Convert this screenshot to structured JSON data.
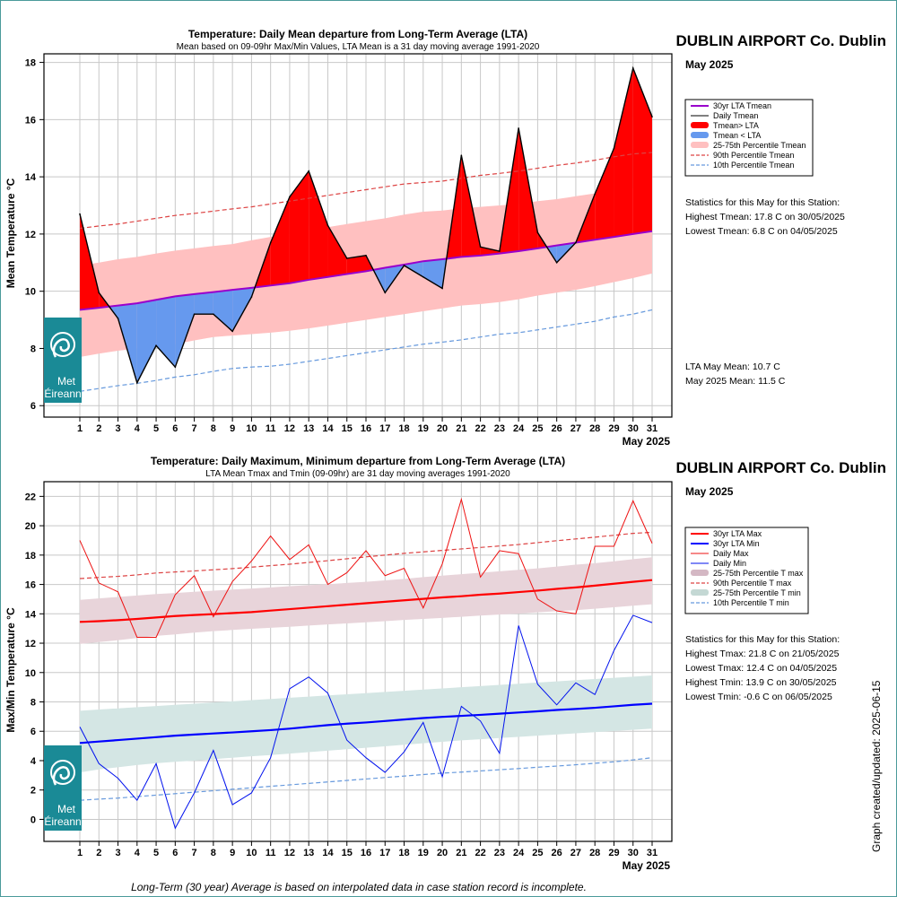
{
  "footer": {
    "note": "Long-Term (30 year) Average is based on interpolated data in case station record is incomplete.",
    "updated": "Graph created/updated:  2025-06-15"
  },
  "logo": {
    "line1": "Met",
    "line2": "Éireann"
  },
  "colors": {
    "lta_mean": "#9900cc",
    "above": "#ff0000",
    "below": "#6699ee",
    "band_mean": "#ffc0c0",
    "p90": "#dd4444",
    "p10": "#6699dd",
    "band_max": "#e8d4da",
    "band_min": "#d4e6e4",
    "max_line": "#ee1111",
    "min_line": "#0011ee",
    "lta_max": "#ff0000",
    "lta_min": "#0000ff",
    "logo_bg": "#1a8a96"
  },
  "chart_data": [
    {
      "type": "area",
      "title": "Temperature: Daily Mean departure from Long-Term Average (LTA)",
      "subtitle": "Mean based on 09-09hr Max/Min Values, LTA Mean is a 31 day moving average 1991-2020",
      "station": "DUBLIN AIRPORT Co. Dublin",
      "month": "May 2025",
      "ylabel": "Mean Temperature °C",
      "xlabel": "May 2025",
      "ylim": [
        5.6,
        18.3
      ],
      "yticks": [
        6,
        8,
        10,
        12,
        14,
        16,
        18
      ],
      "x": [
        1,
        2,
        3,
        4,
        5,
        6,
        7,
        8,
        9,
        10,
        11,
        12,
        13,
        14,
        15,
        16,
        17,
        18,
        19,
        20,
        21,
        22,
        23,
        24,
        25,
        26,
        27,
        28,
        29,
        30,
        31
      ],
      "series": [
        {
          "name": "30yr LTA Tmean",
          "values": [
            9.35,
            9.42,
            9.5,
            9.58,
            9.7,
            9.82,
            9.9,
            9.97,
            10.05,
            10.12,
            10.2,
            10.28,
            10.4,
            10.5,
            10.6,
            10.7,
            10.82,
            10.93,
            11.05,
            11.12,
            11.2,
            11.25,
            11.32,
            11.4,
            11.5,
            11.6,
            11.7,
            11.8,
            11.9,
            12.0,
            12.1
          ]
        },
        {
          "name": "Daily Tmean",
          "values": [
            12.7,
            9.95,
            9.05,
            6.8,
            8.1,
            7.35,
            9.2,
            9.2,
            8.6,
            9.8,
            11.7,
            13.3,
            14.2,
            12.3,
            11.15,
            11.25,
            9.95,
            10.9,
            10.5,
            10.1,
            14.75,
            11.55,
            11.4,
            15.7,
            12.05,
            11.0,
            11.7,
            13.4,
            15.0,
            17.8,
            16.1
          ]
        },
        {
          "name": "25-75th Percentile Tmean",
          "lower": [
            7.7,
            7.82,
            7.92,
            8.0,
            8.1,
            8.15,
            8.28,
            8.4,
            8.45,
            8.5,
            8.55,
            8.62,
            8.7,
            8.8,
            8.9,
            9.0,
            9.1,
            9.2,
            9.3,
            9.4,
            9.5,
            9.55,
            9.62,
            9.72,
            9.85,
            9.95,
            10.05,
            10.18,
            10.32,
            10.46,
            10.62
          ],
          "upper": [
            10.9,
            11.0,
            11.12,
            11.2,
            11.32,
            11.42,
            11.5,
            11.58,
            11.65,
            11.78,
            11.9,
            12.0,
            12.12,
            12.24,
            12.35,
            12.45,
            12.55,
            12.68,
            12.78,
            12.82,
            12.9,
            12.95,
            13.0,
            13.05,
            13.15,
            13.22,
            13.32,
            13.42,
            13.5,
            13.6,
            13.66
          ]
        },
        {
          "name": "90th Percentile Tmean",
          "values": [
            12.2,
            12.28,
            12.35,
            12.45,
            12.55,
            12.65,
            12.72,
            12.8,
            12.88,
            12.95,
            13.05,
            13.15,
            13.25,
            13.35,
            13.45,
            13.55,
            13.65,
            13.75,
            13.8,
            13.85,
            13.95,
            14.05,
            14.12,
            14.2,
            14.3,
            14.4,
            14.48,
            14.58,
            14.7,
            14.8,
            14.85
          ]
        },
        {
          "name": "10th Percentile Tmean",
          "values": [
            6.5,
            6.6,
            6.7,
            6.78,
            6.88,
            7.0,
            7.08,
            7.2,
            7.3,
            7.35,
            7.38,
            7.45,
            7.55,
            7.65,
            7.75,
            7.85,
            7.95,
            8.05,
            8.15,
            8.22,
            8.3,
            8.4,
            8.5,
            8.55,
            8.65,
            8.75,
            8.85,
            8.95,
            9.1,
            9.2,
            9.35
          ]
        }
      ],
      "legend": [
        "30yr LTA Tmean",
        "Daily Tmean",
        "Tmean> LTA",
        "Tmean < LTA",
        "25-75th Percentile Tmean",
        "90th Percentile Tmean",
        "10th Percentile Tmean"
      ],
      "stats": [
        "Statistics for this May for this Station:",
        "Highest Tmean: 17.8 C on 30/05/2025",
        "Lowest Tmean: 6.8 C on 04/05/2025"
      ],
      "lta_stats": [
        "LTA May Mean: 10.7 C",
        "May 2025 Mean: 11.5 C"
      ]
    },
    {
      "type": "line",
      "title": "Temperature: Daily Maximum, Minimum departure from Long-Term Average (LTA)",
      "subtitle": "LTA Mean Tmax and Tmin (09-09hr) are 31 day moving averages 1991-2020",
      "station": "DUBLIN AIRPORT Co. Dublin",
      "month": "May 2025",
      "ylabel": "Max/Min Temperature °C",
      "xlabel": "May 2025",
      "ylim": [
        -1.5,
        23.0
      ],
      "yticks": [
        0,
        2,
        4,
        6,
        8,
        10,
        12,
        14,
        16,
        18,
        20,
        22
      ],
      "x": [
        1,
        2,
        3,
        4,
        5,
        6,
        7,
        8,
        9,
        10,
        11,
        12,
        13,
        14,
        15,
        16,
        17,
        18,
        19,
        20,
        21,
        22,
        23,
        24,
        25,
        26,
        27,
        28,
        29,
        30,
        31
      ],
      "series": [
        {
          "name": "30yr LTA Max",
          "values": [
            13.45,
            13.5,
            13.57,
            13.65,
            13.75,
            13.85,
            13.92,
            13.98,
            14.05,
            14.12,
            14.22,
            14.32,
            14.42,
            14.52,
            14.62,
            14.72,
            14.82,
            14.92,
            15.02,
            15.12,
            15.2,
            15.3,
            15.38,
            15.48,
            15.58,
            15.7,
            15.8,
            15.92,
            16.05,
            16.18,
            16.3
          ]
        },
        {
          "name": "30yr LTA Min",
          "values": [
            5.2,
            5.3,
            5.4,
            5.5,
            5.6,
            5.7,
            5.78,
            5.85,
            5.92,
            6.0,
            6.08,
            6.18,
            6.3,
            6.42,
            6.52,
            6.6,
            6.7,
            6.8,
            6.9,
            6.98,
            7.05,
            7.12,
            7.2,
            7.28,
            7.36,
            7.45,
            7.52,
            7.6,
            7.7,
            7.8,
            7.88
          ]
        },
        {
          "name": "Daily Max",
          "values": [
            19.0,
            16.1,
            15.5,
            12.4,
            12.4,
            15.3,
            16.6,
            13.8,
            16.2,
            17.6,
            19.3,
            17.7,
            18.7,
            16.0,
            16.8,
            18.3,
            16.6,
            17.1,
            14.4,
            17.4,
            21.8,
            16.5,
            18.3,
            18.1,
            15.0,
            14.2,
            14.0,
            18.6,
            18.6,
            21.7,
            18.8
          ]
        },
        {
          "name": "Daily Min",
          "values": [
            6.3,
            3.8,
            2.8,
            1.3,
            3.8,
            -0.6,
            1.8,
            4.7,
            1.0,
            1.8,
            4.2,
            8.9,
            9.7,
            8.6,
            5.4,
            4.2,
            3.2,
            4.6,
            6.6,
            2.9,
            7.7,
            6.7,
            4.5,
            13.2,
            9.2,
            7.8,
            9.3,
            8.5,
            11.5,
            13.9,
            13.4
          ]
        },
        {
          "name": "25-75th Percentile T max",
          "lower": [
            11.95,
            12.08,
            12.2,
            12.35,
            12.5,
            12.6,
            12.72,
            12.82,
            12.9,
            12.98,
            13.05,
            13.12,
            13.2,
            13.28,
            13.35,
            13.42,
            13.5,
            13.58,
            13.65,
            13.72,
            13.8,
            13.88,
            13.95,
            14.02,
            14.1,
            14.18,
            14.25,
            14.35,
            14.45,
            14.55,
            14.65
          ],
          "upper": [
            14.95,
            15.05,
            15.15,
            15.25,
            15.35,
            15.42,
            15.5,
            15.58,
            15.65,
            15.72,
            15.8,
            15.88,
            15.95,
            16.02,
            16.1,
            16.18,
            16.28,
            16.38,
            16.5,
            16.6,
            16.7,
            16.8,
            16.9,
            17.0,
            17.1,
            17.22,
            17.35,
            17.45,
            17.58,
            17.72,
            17.85
          ]
        },
        {
          "name": "90th Percentile T max",
          "values": [
            16.4,
            16.48,
            16.55,
            16.65,
            16.78,
            16.85,
            16.92,
            17.0,
            17.08,
            17.18,
            17.28,
            17.38,
            17.5,
            17.62,
            17.75,
            17.88,
            18.0,
            18.12,
            18.22,
            18.32,
            18.42,
            18.52,
            18.62,
            18.72,
            18.85,
            18.98,
            19.1,
            19.22,
            19.35,
            19.48,
            19.55
          ]
        },
        {
          "name": "25-75th Percentile T min",
          "lower": [
            3.2,
            3.4,
            3.55,
            3.7,
            3.82,
            3.92,
            4.0,
            4.1,
            4.2,
            4.3,
            4.38,
            4.48,
            4.58,
            4.68,
            4.78,
            4.88,
            4.98,
            5.08,
            5.18,
            5.28,
            5.38,
            5.46,
            5.54,
            5.62,
            5.7,
            5.78,
            5.86,
            5.94,
            6.02,
            6.1,
            6.18
          ],
          "upper": [
            7.4,
            7.48,
            7.56,
            7.64,
            7.72,
            7.8,
            7.88,
            7.96,
            8.04,
            8.12,
            8.2,
            8.28,
            8.36,
            8.44,
            8.52,
            8.6,
            8.68,
            8.76,
            8.84,
            8.92,
            9.0,
            9.08,
            9.16,
            9.24,
            9.32,
            9.4,
            9.48,
            9.56,
            9.64,
            9.72,
            9.8
          ]
        },
        {
          "name": "10th Percentile T min",
          "values": [
            1.3,
            1.38,
            1.45,
            1.55,
            1.65,
            1.75,
            1.85,
            1.95,
            2.05,
            2.15,
            2.25,
            2.35,
            2.45,
            2.55,
            2.65,
            2.75,
            2.85,
            2.95,
            3.05,
            3.15,
            3.22,
            3.3,
            3.38,
            3.46,
            3.55,
            3.63,
            3.72,
            3.82,
            3.92,
            4.05,
            4.2
          ]
        }
      ],
      "legend": [
        "30yr LTA Max",
        "30yr LTA Min",
        "Daily Max",
        "Daily Min",
        "25-75th Percentile T max",
        "90th Percentile T max",
        "25-75th Percentile T min",
        "10th Percentile T min"
      ],
      "stats": [
        "Statistics for this May for this Station:",
        "Highest Tmax: 21.8 C on 21/05/2025",
        "Lowest Tmax: 12.4 C on 04/05/2025",
        "Highest Tmin: 13.9 C on 30/05/2025",
        "Lowest Tmin: -0.6 C on 06/05/2025"
      ]
    }
  ]
}
